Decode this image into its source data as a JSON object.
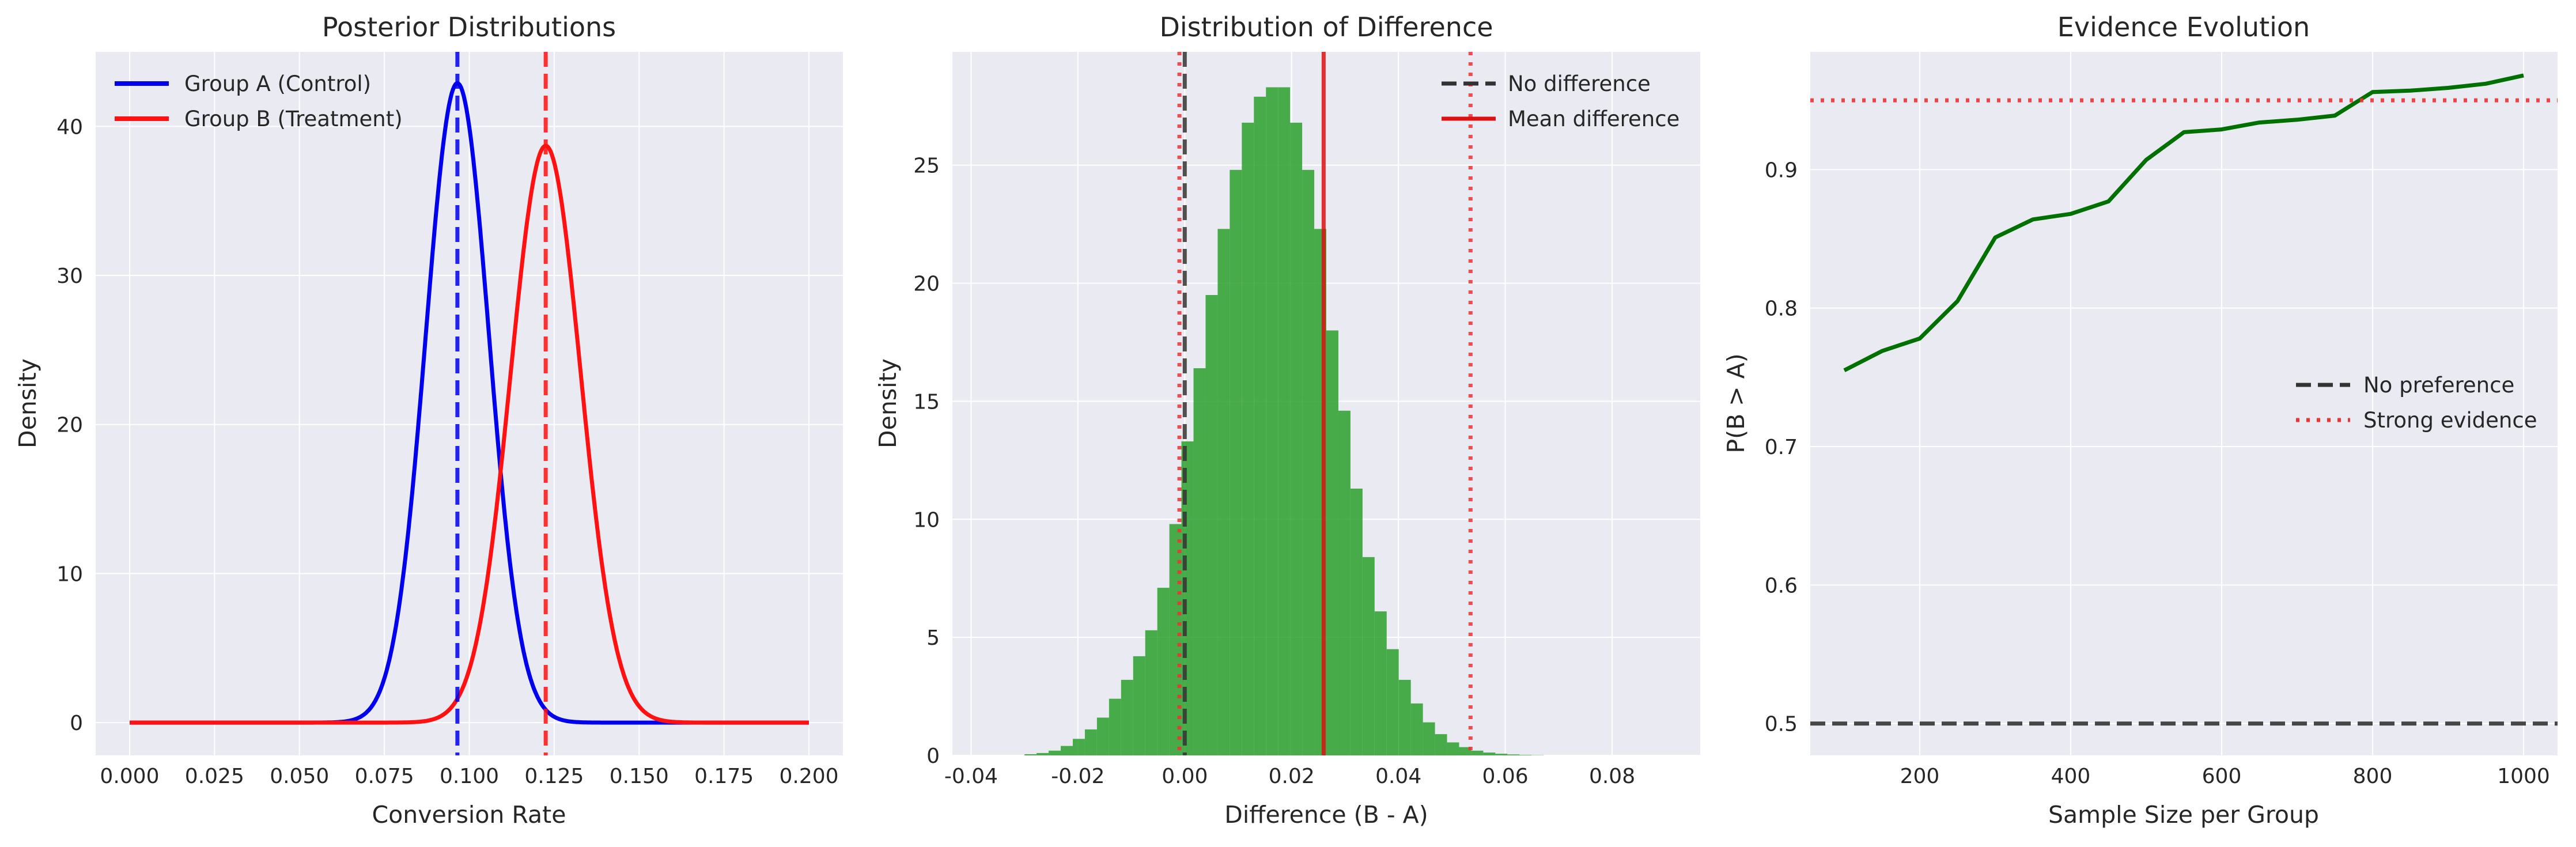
{
  "chart_data": [
    {
      "type": "line",
      "title": "Posterior Distributions",
      "xlabel": "Conversion Rate",
      "ylabel": "Density",
      "xlim": [
        -0.01,
        0.21
      ],
      "ylim": [
        -2.2,
        45
      ],
      "xticks": [
        "0.000",
        "0.025",
        "0.050",
        "0.075",
        "0.100",
        "0.125",
        "0.150",
        "0.175",
        "0.200"
      ],
      "yticks": [
        "0",
        "10",
        "20",
        "30",
        "40"
      ],
      "grid": true,
      "legend_position": "top-left",
      "series": [
        {
          "name": "Group A (Control)",
          "color": "#0000ee",
          "distribution": "normal",
          "mean": 0.0965,
          "sd": 0.0093,
          "peak": 42.9
        },
        {
          "name": "Group B (Treatment)",
          "color": "#ff1111",
          "distribution": "normal",
          "mean": 0.1225,
          "sd": 0.0103,
          "peak": 38.7
        }
      ],
      "vlines": [
        {
          "x": 0.0965,
          "color": "#0000ee",
          "style": "dashed"
        },
        {
          "x": 0.1225,
          "color": "#ff1111",
          "style": "dashed"
        }
      ]
    },
    {
      "type": "bar",
      "title": "Distribution of Difference",
      "xlabel": "Difference (B - A)",
      "ylabel": "Density",
      "xlim": [
        -0.0435,
        0.0965
      ],
      "ylim": [
        0,
        29.8
      ],
      "xticks": [
        "-0.04",
        "-0.02",
        "0.00",
        "0.02",
        "0.04",
        "0.06",
        "0.08"
      ],
      "yticks": [
        "0",
        "5",
        "10",
        "15",
        "20",
        "25"
      ],
      "grid": true,
      "legend_position": "top-right",
      "bar_color": "#2ca02c",
      "bin_start": -0.03,
      "bin_width": 0.00226,
      "values": [
        0.05,
        0.1,
        0.2,
        0.4,
        0.7,
        1.1,
        1.6,
        2.4,
        3.2,
        4.2,
        5.3,
        7.1,
        9.8,
        13.3,
        16.4,
        19.5,
        22.3,
        24.8,
        26.8,
        27.9,
        28.3,
        28.3,
        26.8,
        24.8,
        22.3,
        18.0,
        14.6,
        11.3,
        8.4,
        6.1,
        4.5,
        3.2,
        2.2,
        1.4,
        0.9,
        0.55,
        0.35,
        0.2,
        0.12,
        0.07,
        0.04,
        0.02,
        0.01
      ],
      "vlines": [
        {
          "x": 0.0,
          "color": "#333333",
          "style": "dashed",
          "label": "No difference"
        },
        {
          "x": 0.026,
          "color": "#dd1111",
          "style": "solid",
          "label": "Mean difference"
        },
        {
          "x": -0.001,
          "color": "#ee3333",
          "style": "dotted"
        },
        {
          "x": 0.0535,
          "color": "#ee3333",
          "style": "dotted"
        }
      ]
    },
    {
      "type": "line",
      "title": "Evidence Evolution",
      "xlabel": "Sample Size per Group",
      "ylabel": "P(B > A)",
      "xlim": [
        55,
        1045
      ],
      "ylim": [
        0.477,
        0.985
      ],
      "xticks": [
        "200",
        "400",
        "600",
        "800",
        "1000"
      ],
      "yticks": [
        "0.5",
        "0.6",
        "0.7",
        "0.8",
        "0.9"
      ],
      "grid": true,
      "legend_position": "center-right",
      "series": [
        {
          "name": "",
          "color": "#007000",
          "x": [
            100,
            150,
            200,
            250,
            300,
            350,
            400,
            450,
            500,
            550,
            600,
            650,
            700,
            750,
            800,
            850,
            900,
            950,
            1000
          ],
          "y": [
            0.755,
            0.769,
            0.778,
            0.805,
            0.851,
            0.864,
            0.868,
            0.877,
            0.907,
            0.927,
            0.929,
            0.934,
            0.936,
            0.939,
            0.956,
            0.957,
            0.959,
            0.962,
            0.968
          ]
        }
      ],
      "hlines": [
        {
          "y": 0.5,
          "color": "#333333",
          "style": "dashed",
          "label": "No preference"
        },
        {
          "y": 0.95,
          "color": "#ee3333",
          "style": "dotted",
          "label": "Strong evidence"
        }
      ]
    }
  ]
}
